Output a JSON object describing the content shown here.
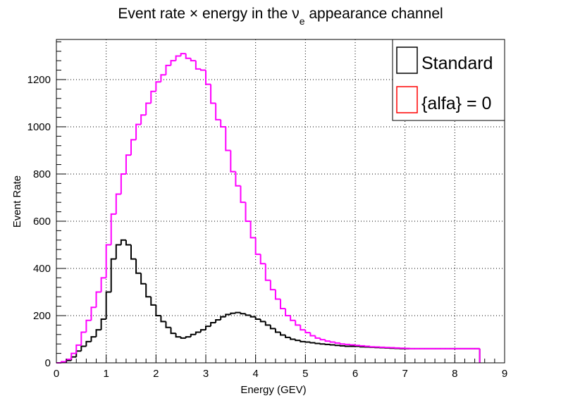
{
  "chart_data": {
    "type": "histogram-step",
    "title": {
      "prefix": "Event rate × energy in the ",
      "symbol": "ν",
      "subscript": "e",
      "suffix": " appearance channel"
    },
    "xlabel": "Energy (GEV)",
    "ylabel": "Event Rate",
    "xlim": [
      0,
      9
    ],
    "ylim": [
      0,
      1370
    ],
    "xticks": [
      0,
      1,
      2,
      3,
      4,
      5,
      6,
      7,
      8,
      9
    ],
    "yticks": [
      0,
      200,
      400,
      600,
      800,
      1000,
      1200
    ],
    "grid": true,
    "legend_position": "top-right",
    "bin_width": 0.1,
    "x_start": 0.0,
    "series": [
      {
        "name": "Standard",
        "color": "#000000",
        "values": [
          0,
          2,
          10,
          25,
          50,
          70,
          90,
          110,
          140,
          185,
          300,
          440,
          500,
          520,
          500,
          440,
          380,
          335,
          280,
          245,
          200,
          175,
          150,
          125,
          110,
          105,
          110,
          120,
          130,
          140,
          155,
          170,
          182,
          195,
          205,
          210,
          213,
          208,
          202,
          195,
          185,
          175,
          160,
          145,
          130,
          118,
          108,
          100,
          95,
          90,
          88,
          85,
          82,
          80,
          78,
          76,
          74,
          72,
          70,
          70,
          70,
          68,
          67,
          66,
          65,
          64,
          63,
          62,
          61,
          60,
          60,
          60,
          60,
          60,
          60,
          60,
          60,
          60,
          60,
          60,
          60,
          60,
          60,
          60,
          60
        ]
      },
      {
        "name": "{alfa} = 0",
        "color": "#ff00ff",
        "legend_color": "#ff0000",
        "values": [
          0,
          5,
          15,
          40,
          75,
          130,
          180,
          235,
          300,
          360,
          500,
          630,
          715,
          800,
          880,
          945,
          1010,
          1050,
          1100,
          1150,
          1190,
          1220,
          1260,
          1280,
          1300,
          1310,
          1290,
          1280,
          1245,
          1240,
          1180,
          1100,
          1030,
          1000,
          900,
          810,
          750,
          680,
          600,
          530,
          460,
          420,
          350,
          310,
          270,
          230,
          200,
          180,
          160,
          140,
          128,
          115,
          105,
          98,
          92,
          88,
          84,
          80,
          78,
          76,
          74,
          72,
          70,
          68,
          67,
          66,
          65,
          64,
          63,
          62,
          61,
          60,
          60,
          60,
          60,
          60,
          60,
          60,
          60,
          60,
          60,
          60,
          60,
          60,
          60
        ]
      }
    ]
  }
}
